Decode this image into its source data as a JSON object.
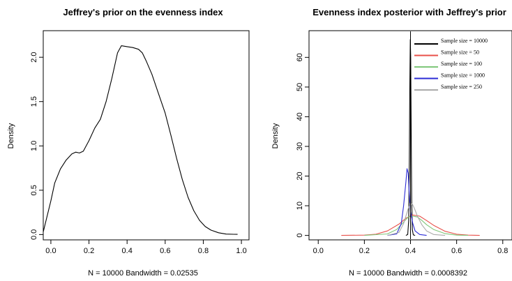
{
  "chart_data": [
    {
      "type": "line",
      "title": "Jeffrey's prior on the evenness index",
      "xlabel": "N = 10000   Bandwidth = 0.02535",
      "ylabel": "Density",
      "xlim": [
        -0.04,
        1.04
      ],
      "ylim": [
        -0.06,
        2.3
      ],
      "xticks": [
        0.0,
        0.2,
        0.4,
        0.6,
        0.8,
        1.0
      ],
      "xtick_labels": [
        "0.0",
        "0.2",
        "0.4",
        "0.6",
        "0.8",
        "1.0"
      ],
      "yticks": [
        0.0,
        0.5,
        1.0,
        1.5,
        2.0
      ],
      "ytick_labels": [
        "0.0",
        "0.5",
        "1.0",
        "1.5",
        "2.0"
      ],
      "grid": false,
      "series": [
        {
          "color": "#000000",
          "x": [
            -0.04,
            0.0,
            0.02,
            0.05,
            0.08,
            0.11,
            0.13,
            0.15,
            0.17,
            0.2,
            0.23,
            0.26,
            0.29,
            0.32,
            0.35,
            0.37,
            0.4,
            0.43,
            0.46,
            0.48,
            0.5,
            0.53,
            0.56,
            0.6,
            0.63,
            0.66,
            0.69,
            0.72,
            0.75,
            0.78,
            0.81,
            0.84,
            0.88,
            0.92,
            0.96,
            0.98
          ],
          "y": [
            0.03,
            0.38,
            0.58,
            0.74,
            0.84,
            0.91,
            0.93,
            0.92,
            0.94,
            1.06,
            1.2,
            1.3,
            1.5,
            1.76,
            2.05,
            2.13,
            2.12,
            2.11,
            2.09,
            2.05,
            1.96,
            1.81,
            1.62,
            1.37,
            1.12,
            0.86,
            0.62,
            0.42,
            0.27,
            0.16,
            0.09,
            0.05,
            0.02,
            0.005,
            0.003,
            0.002
          ]
        }
      ]
    },
    {
      "type": "line",
      "title": "Evenness index posterior with Jeffrey's prior",
      "xlabel": "N = 10000   Bandwidth = 0.0008392",
      "ylabel": "Density",
      "xlim": [
        -0.04,
        0.84
      ],
      "ylim": [
        -1.5,
        69
      ],
      "xticks": [
        0.0,
        0.2,
        0.4,
        0.6,
        0.8
      ],
      "xtick_labels": [
        "0.0",
        "0.2",
        "0.4",
        "0.6",
        "0.8"
      ],
      "yticks": [
        0,
        10,
        20,
        30,
        40,
        50,
        60
      ],
      "ytick_labels": [
        "0",
        "10",
        "20",
        "30",
        "40",
        "50",
        "60"
      ],
      "grid": false,
      "vline": 0.4,
      "legend": {
        "position": "top-right",
        "items": [
          {
            "label": "Sample size = 10000",
            "color": "#000000"
          },
          {
            "label": "Sample size = 50",
            "color": "#e8504a"
          },
          {
            "label": "Sample size = 100",
            "color": "#7fc77a"
          },
          {
            "label": "Sample size = 1000",
            "color": "#2b2bd6"
          },
          {
            "label": "Sample size = 250",
            "color": "#aaaaaa"
          }
        ]
      },
      "series": [
        {
          "color": "#000000",
          "x": [
            0.38,
            0.388,
            0.392,
            0.395,
            0.397,
            0.399,
            0.401,
            0.403,
            0.405,
            0.408,
            0.412,
            0.42
          ],
          "y": [
            0,
            0.3,
            5,
            25,
            50,
            66,
            60,
            35,
            12,
            2,
            0.2,
            0
          ]
        },
        {
          "color": "#e8504a",
          "x": [
            0.1,
            0.2,
            0.25,
            0.3,
            0.35,
            0.38,
            0.41,
            0.44,
            0.47,
            0.5,
            0.55,
            0.6,
            0.65,
            0.7
          ],
          "y": [
            0,
            0.1,
            0.4,
            1.5,
            3.8,
            5.8,
            6.9,
            6.5,
            5.0,
            3.4,
            1.4,
            0.4,
            0.1,
            0
          ]
        },
        {
          "color": "#7fc77a",
          "x": [
            0.2,
            0.3,
            0.34,
            0.37,
            0.39,
            0.41,
            0.43,
            0.45,
            0.47,
            0.5,
            0.55,
            0.6,
            0.65
          ],
          "y": [
            0,
            0.5,
            2.0,
            4.5,
            6.2,
            6.5,
            6.2,
            5.0,
            3.6,
            2.0,
            0.6,
            0.1,
            0
          ]
        },
        {
          "color": "#2b2bd6",
          "x": [
            0.3,
            0.34,
            0.36,
            0.37,
            0.38,
            0.385,
            0.39,
            0.395,
            0.4,
            0.41,
            0.42,
            0.44,
            0.47
          ],
          "y": [
            0,
            0.5,
            4,
            10,
            18,
            22.5,
            21,
            14,
            8,
            4,
            1.5,
            0.3,
            0
          ]
        },
        {
          "color": "#aaaaaa",
          "x": [
            0.3,
            0.35,
            0.37,
            0.39,
            0.4,
            0.41,
            0.42,
            0.43,
            0.45,
            0.47,
            0.5,
            0.55
          ],
          "y": [
            0,
            1.0,
            4.0,
            9.0,
            11.0,
            10.3,
            8.5,
            6.5,
            3.5,
            1.5,
            0.3,
            0
          ]
        }
      ]
    }
  ]
}
